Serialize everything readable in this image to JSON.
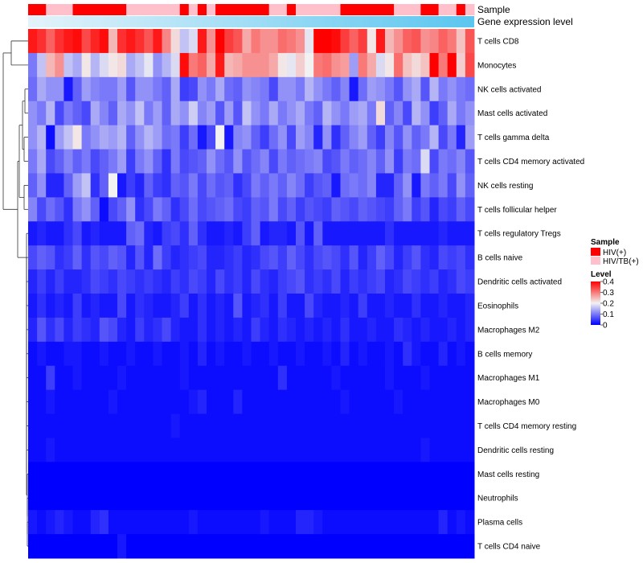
{
  "chart_data": {
    "type": "heatmap",
    "title": "",
    "annotation_labels": {
      "sample": "Sample",
      "gene_expression": "Gene expression level"
    },
    "rows": [
      "T cells CD8",
      "Monocytes",
      "NK cells activated",
      "Mast cells activated",
      "T cells gamma delta",
      "T cells CD4 memory activated",
      "NK cells resting",
      "T cells follicular helper",
      "T cells regulatory  Tregs",
      "B cells naive",
      "Dendritic cells activated",
      "Eosinophils",
      "Macrophages M2",
      "B cells memory",
      "Macrophages M1",
      "Macrophages M0",
      "T cells CD4 memory resting",
      "Dendritic cells resting",
      "Mast cells resting",
      "Neutrophils",
      "Plasma cells",
      "T cells CD4 naive"
    ],
    "num_samples": 50,
    "sample_groups": [
      "HIV(+)",
      "HIV(+)",
      "HIV/TB(+)",
      "HIV/TB(+)",
      "HIV/TB(+)",
      "HIV(+)",
      "HIV(+)",
      "HIV(+)",
      "HIV(+)",
      "HIV(+)",
      "HIV(+)",
      "HIV/TB(+)",
      "HIV/TB(+)",
      "HIV/TB(+)",
      "HIV/TB(+)",
      "HIV/TB(+)",
      "HIV/TB(+)",
      "HIV(+)",
      "HIV/TB(+)",
      "HIV(+)",
      "HIV/TB(+)",
      "HIV(+)",
      "HIV(+)",
      "HIV(+)",
      "HIV(+)",
      "HIV(+)",
      "HIV(+)",
      "HIV/TB(+)",
      "HIV/TB(+)",
      "HIV(+)",
      "HIV/TB(+)",
      "HIV/TB(+)",
      "HIV/TB(+)",
      "HIV/TB(+)",
      "HIV/TB(+)",
      "HIV(+)",
      "HIV(+)",
      "HIV(+)",
      "HIV(+)",
      "HIV(+)",
      "HIV(+)",
      "HIV/TB(+)",
      "HIV/TB(+)",
      "HIV/TB(+)",
      "HIV(+)",
      "HIV(+)",
      "HIV/TB(+)",
      "HIV/TB(+)",
      "HIV(+)",
      "HIV/TB(+)"
    ],
    "values": [
      [
        0.38,
        0.36,
        0.32,
        0.36,
        0.38,
        0.39,
        0.34,
        0.37,
        0.39,
        0.25,
        0.36,
        0.38,
        0.36,
        0.33,
        0.38,
        0.29,
        0.22,
        0.16,
        0.18,
        0.38,
        0.28,
        0.4,
        0.35,
        0.33,
        0.26,
        0.3,
        0.28,
        0.28,
        0.31,
        0.3,
        0.28,
        0.19,
        0.4,
        0.4,
        0.39,
        0.35,
        0.32,
        0.35,
        0.21,
        0.38,
        0.25,
        0.28,
        0.32,
        0.33,
        0.28,
        0.29,
        0.32,
        0.3,
        0.24,
        0.33
      ],
      [
        0.1,
        0.16,
        0.25,
        0.28,
        0.16,
        0.14,
        0.21,
        0.15,
        0.18,
        0.21,
        0.22,
        0.14,
        0.16,
        0.19,
        0.12,
        0.15,
        0.18,
        0.39,
        0.3,
        0.32,
        0.26,
        0.38,
        0.25,
        0.26,
        0.28,
        0.28,
        0.28,
        0.26,
        0.21,
        0.19,
        0.23,
        0.2,
        0.3,
        0.31,
        0.28,
        0.27,
        0.13,
        0.3,
        0.26,
        0.18,
        0.21,
        0.31,
        0.24,
        0.22,
        0.24,
        0.4,
        0.3,
        0.4,
        0.23,
        0.34
      ],
      [
        0.09,
        0.14,
        0.12,
        0.12,
        0.02,
        0.08,
        0.13,
        0.11,
        0.1,
        0.1,
        0.13,
        0.07,
        0.12,
        0.12,
        0.1,
        0.08,
        0.14,
        0.05,
        0.06,
        0.12,
        0.1,
        0.14,
        0.09,
        0.08,
        0.12,
        0.11,
        0.1,
        0.06,
        0.12,
        0.12,
        0.1,
        0.15,
        0.12,
        0.1,
        0.08,
        0.11,
        0.02,
        0.09,
        0.13,
        0.12,
        0.1,
        0.07,
        0.12,
        0.14,
        0.07,
        0.15,
        0.1,
        0.12,
        0.1,
        0.09
      ],
      [
        0.12,
        0.1,
        0.15,
        0.06,
        0.1,
        0.08,
        0.06,
        0.14,
        0.11,
        0.08,
        0.14,
        0.12,
        0.16,
        0.1,
        0.13,
        0.08,
        0.14,
        0.12,
        0.17,
        0.11,
        0.13,
        0.07,
        0.13,
        0.07,
        0.16,
        0.12,
        0.1,
        0.14,
        0.1,
        0.12,
        0.14,
        0.1,
        0.08,
        0.15,
        0.12,
        0.1,
        0.13,
        0.14,
        0.1,
        0.22,
        0.08,
        0.11,
        0.06,
        0.15,
        0.12,
        0.05,
        0.08,
        0.14,
        0.1,
        0.12
      ],
      [
        0.12,
        0.15,
        0.01,
        0.13,
        0.16,
        0.21,
        0.1,
        0.12,
        0.14,
        0.13,
        0.15,
        0.08,
        0.12,
        0.15,
        0.13,
        0.09,
        0.1,
        0.05,
        0.09,
        0.02,
        0.06,
        0.2,
        0.02,
        0.11,
        0.12,
        0.08,
        0.05,
        0.09,
        0.12,
        0.06,
        0.13,
        0.11,
        0.03,
        0.12,
        0.04,
        0.08,
        0.11,
        0.13,
        0.08,
        0.05,
        0.11,
        0.07,
        0.12,
        0.08,
        0.1,
        0.15,
        0.06,
        0.1,
        0.03,
        0.13
      ],
      [
        0.1,
        0.14,
        0.06,
        0.08,
        0.11,
        0.08,
        0.1,
        0.06,
        0.08,
        0.1,
        0.13,
        0.05,
        0.1,
        0.12,
        0.08,
        0.04,
        0.1,
        0.06,
        0.07,
        0.08,
        0.12,
        0.09,
        0.07,
        0.12,
        0.07,
        0.09,
        0.11,
        0.06,
        0.1,
        0.08,
        0.09,
        0.1,
        0.11,
        0.06,
        0.07,
        0.1,
        0.08,
        0.09,
        0.11,
        0.08,
        0.12,
        0.05,
        0.1,
        0.09,
        0.18,
        0.06,
        0.1,
        0.09,
        0.11,
        0.07
      ],
      [
        0.08,
        0.12,
        0.03,
        0.03,
        0.08,
        0.13,
        0.16,
        0.04,
        0.08,
        0.2,
        0.02,
        0.05,
        0.03,
        0.08,
        0.05,
        0.04,
        0.08,
        0.07,
        0.1,
        0.06,
        0.09,
        0.07,
        0.08,
        0.04,
        0.06,
        0.1,
        0.08,
        0.1,
        0.08,
        0.11,
        0.09,
        0.05,
        0.07,
        0.08,
        0.02,
        0.09,
        0.1,
        0.09,
        0.11,
        0.03,
        0.03,
        0.08,
        0.12,
        0.02,
        0.1,
        0.08,
        0.1,
        0.06,
        0.12,
        0.08
      ],
      [
        0.11,
        0.06,
        0.09,
        0.07,
        0.04,
        0.1,
        0.12,
        0.08,
        0.01,
        0.06,
        0.08,
        0.12,
        0.04,
        0.06,
        0.1,
        0.08,
        0.04,
        0.06,
        0.09,
        0.06,
        0.07,
        0.08,
        0.09,
        0.06,
        0.05,
        0.08,
        0.07,
        0.1,
        0.06,
        0.08,
        0.05,
        0.07,
        0.06,
        0.05,
        0.08,
        0.07,
        0.06,
        0.08,
        0.07,
        0.06,
        0.05,
        0.08,
        0.1,
        0.05,
        0.07,
        0.03,
        0.06,
        0.05,
        0.08,
        0.06
      ],
      [
        0.02,
        0.03,
        0.02,
        0.02,
        0.04,
        0.06,
        0.02,
        0.03,
        0.02,
        0.02,
        0.02,
        0.08,
        0.09,
        0.03,
        0.02,
        0.05,
        0.06,
        0.04,
        0.08,
        0.04,
        0.02,
        0.02,
        0.03,
        0.02,
        0.05,
        0.08,
        0.02,
        0.03,
        0.03,
        0.02,
        0.07,
        0.02,
        0.08,
        0.02,
        0.02,
        0.02,
        0.02,
        0.02,
        0.02,
        0.02,
        0.04,
        0.02,
        0.02,
        0.02,
        0.02,
        0.02,
        0.03,
        0.02,
        0.02,
        0.02
      ],
      [
        0.06,
        0.08,
        0.07,
        0.04,
        0.05,
        0.08,
        0.04,
        0.07,
        0.06,
        0.08,
        0.07,
        0.03,
        0.07,
        0.03,
        0.09,
        0.05,
        0.03,
        0.04,
        0.05,
        0.06,
        0.03,
        0.03,
        0.04,
        0.05,
        0.03,
        0.04,
        0.06,
        0.07,
        0.05,
        0.08,
        0.06,
        0.04,
        0.06,
        0.07,
        0.06,
        0.04,
        0.07,
        0.03,
        0.05,
        0.08,
        0.06,
        0.03,
        0.05,
        0.07,
        0.04,
        0.03,
        0.06,
        0.05,
        0.06,
        0.04
      ],
      [
        0.03,
        0.05,
        0.03,
        0.05,
        0.03,
        0.03,
        0.04,
        0.06,
        0.05,
        0.04,
        0.06,
        0.05,
        0.04,
        0.05,
        0.04,
        0.03,
        0.05,
        0.04,
        0.06,
        0.05,
        0.03,
        0.06,
        0.04,
        0.05,
        0.03,
        0.06,
        0.04,
        0.03,
        0.05,
        0.06,
        0.07,
        0.04,
        0.05,
        0.04,
        0.06,
        0.03,
        0.05,
        0.04,
        0.05,
        0.06,
        0.03,
        0.04,
        0.06,
        0.05,
        0.04,
        0.05,
        0.03,
        0.04,
        0.06,
        0.05
      ],
      [
        0.02,
        0.04,
        0.02,
        0.03,
        0.02,
        0.05,
        0.02,
        0.03,
        0.02,
        0.02,
        0.06,
        0.02,
        0.04,
        0.03,
        0.02,
        0.02,
        0.03,
        0.05,
        0.02,
        0.04,
        0.02,
        0.03,
        0.02,
        0.07,
        0.02,
        0.03,
        0.04,
        0.02,
        0.05,
        0.02,
        0.02,
        0.06,
        0.03,
        0.02,
        0.02,
        0.03,
        0.02,
        0.05,
        0.02,
        0.02,
        0.03,
        0.02,
        0.02,
        0.04,
        0.02,
        0.02,
        0.03,
        0.02,
        0.02,
        0.03
      ],
      [
        0.03,
        0.07,
        0.04,
        0.06,
        0.03,
        0.05,
        0.04,
        0.03,
        0.07,
        0.06,
        0.03,
        0.02,
        0.05,
        0.03,
        0.04,
        0.06,
        0.03,
        0.02,
        0.02,
        0.04,
        0.02,
        0.03,
        0.02,
        0.03,
        0.02,
        0.05,
        0.03,
        0.02,
        0.04,
        0.03,
        0.02,
        0.03,
        0.02,
        0.03,
        0.02,
        0.04,
        0.02,
        0.02,
        0.03,
        0.02,
        0.02,
        0.04,
        0.03,
        0.02,
        0.03,
        0.02,
        0.02,
        0.03,
        0.02,
        0.03
      ],
      [
        0.01,
        0.02,
        0.01,
        0.01,
        0.02,
        0.02,
        0.01,
        0.01,
        0.02,
        0.01,
        0.01,
        0.02,
        0.01,
        0.01,
        0.02,
        0.01,
        0.01,
        0.02,
        0.01,
        0.03,
        0.01,
        0.02,
        0.01,
        0.01,
        0.02,
        0.01,
        0.01,
        0.02,
        0.01,
        0.01,
        0.02,
        0.01,
        0.01,
        0.02,
        0.01,
        0.03,
        0.01,
        0.02,
        0.01,
        0.01,
        0.02,
        0.01,
        0.04,
        0.02,
        0.01,
        0.01,
        0.03,
        0.01,
        0.02,
        0.01
      ],
      [
        0.01,
        0.01,
        0.05,
        0.01,
        0.01,
        0.02,
        0.01,
        0.01,
        0.01,
        0.01,
        0.02,
        0.01,
        0.01,
        0.01,
        0.01,
        0.01,
        0.01,
        0.02,
        0.01,
        0.01,
        0.01,
        0.01,
        0.01,
        0.01,
        0.01,
        0.01,
        0.01,
        0.01,
        0.04,
        0.01,
        0.01,
        0.01,
        0.01,
        0.01,
        0.02,
        0.01,
        0.01,
        0.01,
        0.01,
        0.01,
        0.02,
        0.01,
        0.01,
        0.01,
        0.02,
        0.01,
        0.01,
        0.01,
        0.01,
        0.01
      ],
      [
        0.01,
        0.01,
        0.02,
        0.01,
        0.01,
        0.01,
        0.01,
        0.01,
        0.01,
        0.02,
        0.01,
        0.01,
        0.01,
        0.01,
        0.01,
        0.01,
        0.01,
        0.01,
        0.02,
        0.03,
        0.01,
        0.01,
        0.01,
        0.03,
        0.01,
        0.01,
        0.01,
        0.01,
        0.01,
        0.01,
        0.01,
        0.01,
        0.01,
        0.01,
        0.01,
        0.02,
        0.01,
        0.01,
        0.01,
        0.01,
        0.01,
        0.02,
        0.01,
        0.01,
        0.01,
        0.01,
        0.01,
        0.01,
        0.01,
        0.01
      ],
      [
        0.01,
        0.01,
        0.01,
        0.01,
        0.01,
        0.01,
        0.01,
        0.01,
        0.01,
        0.01,
        0.01,
        0.01,
        0.01,
        0.01,
        0.01,
        0.01,
        0.02,
        0.01,
        0.01,
        0.01,
        0.01,
        0.01,
        0.01,
        0.01,
        0.01,
        0.01,
        0.01,
        0.01,
        0.01,
        0.01,
        0.01,
        0.01,
        0.01,
        0.01,
        0.01,
        0.01,
        0.01,
        0.01,
        0.01,
        0.01,
        0.01,
        0.01,
        0.01,
        0.01,
        0.01,
        0.01,
        0.01,
        0.01,
        0.01,
        0.01
      ],
      [
        0.01,
        0.01,
        0.02,
        0.01,
        0.01,
        0.01,
        0.01,
        0.01,
        0.01,
        0.01,
        0.01,
        0.01,
        0.01,
        0.01,
        0.01,
        0.01,
        0.01,
        0.01,
        0.01,
        0.01,
        0.01,
        0.01,
        0.01,
        0.01,
        0.01,
        0.01,
        0.01,
        0.01,
        0.01,
        0.01,
        0.01,
        0.01,
        0.01,
        0.01,
        0.01,
        0.01,
        0.01,
        0.01,
        0.01,
        0.01,
        0.01,
        0.01,
        0.01,
        0.01,
        0.02,
        0.01,
        0.01,
        0.01,
        0.01,
        0.01
      ],
      [
        0.0,
        0.0,
        0.0,
        0.0,
        0.0,
        0.0,
        0.0,
        0.0,
        0.0,
        0.0,
        0.0,
        0.0,
        0.0,
        0.0,
        0.0,
        0.0,
        0.0,
        0.0,
        0.0,
        0.0,
        0.0,
        0.0,
        0.0,
        0.0,
        0.0,
        0.0,
        0.0,
        0.0,
        0.0,
        0.0,
        0.0,
        0.0,
        0.0,
        0.0,
        0.0,
        0.0,
        0.0,
        0.0,
        0.0,
        0.0,
        0.0,
        0.0,
        0.0,
        0.0,
        0.0,
        0.0,
        0.0,
        0.0,
        0.0,
        0.0
      ],
      [
        0.0,
        0.0,
        0.0,
        0.0,
        0.0,
        0.0,
        0.0,
        0.0,
        0.0,
        0.0,
        0.0,
        0.0,
        0.0,
        0.0,
        0.0,
        0.0,
        0.0,
        0.0,
        0.0,
        0.0,
        0.0,
        0.0,
        0.0,
        0.0,
        0.0,
        0.0,
        0.0,
        0.0,
        0.0,
        0.0,
        0.0,
        0.0,
        0.0,
        0.0,
        0.0,
        0.0,
        0.0,
        0.0,
        0.0,
        0.0,
        0.0,
        0.0,
        0.0,
        0.0,
        0.0,
        0.0,
        0.0,
        0.0,
        0.0,
        0.0
      ],
      [
        0.02,
        0.01,
        0.02,
        0.03,
        0.02,
        0.01,
        0.01,
        0.03,
        0.04,
        0.01,
        0.01,
        0.01,
        0.01,
        0.01,
        0.01,
        0.01,
        0.01,
        0.01,
        0.02,
        0.01,
        0.01,
        0.01,
        0.01,
        0.01,
        0.01,
        0.01,
        0.02,
        0.01,
        0.01,
        0.01,
        0.03,
        0.03,
        0.02,
        0.01,
        0.01,
        0.01,
        0.01,
        0.01,
        0.01,
        0.01,
        0.01,
        0.01,
        0.01,
        0.01,
        0.01,
        0.01,
        0.03,
        0.01,
        0.02,
        0.01
      ],
      [
        0.0,
        0.0,
        0.0,
        0.0,
        0.0,
        0.0,
        0.0,
        0.0,
        0.0,
        0.0,
        0.02,
        0.0,
        0.0,
        0.0,
        0.0,
        0.0,
        0.0,
        0.0,
        0.0,
        0.0,
        0.0,
        0.0,
        0.0,
        0.0,
        0.0,
        0.0,
        0.0,
        0.0,
        0.0,
        0.0,
        0.0,
        0.0,
        0.0,
        0.0,
        0.0,
        0.0,
        0.0,
        0.0,
        0.0,
        0.0,
        0.0,
        0.0,
        0.0,
        0.0,
        0.0,
        0.0,
        0.0,
        0.0,
        0.0,
        0.0
      ]
    ],
    "gene_expression_gradient": [
      "#e4f3fb",
      "#5bc6ef"
    ],
    "legend": {
      "sample_title": "Sample",
      "groups": [
        {
          "label": "HIV(+)",
          "color": "#ff0000"
        },
        {
          "label": "HIV/TB(+)",
          "color": "#ffc0cb"
        }
      ],
      "level_title": "Level",
      "level_ticks": [
        {
          "value": 0.4,
          "label": "0.4"
        },
        {
          "value": 0.3,
          "label": "0.3"
        },
        {
          "value": 0.2,
          "label": "0.2"
        },
        {
          "value": 0.1,
          "label": "0.1"
        },
        {
          "value": 0.0,
          "label": "0"
        }
      ],
      "level_range": [
        0,
        0.4
      ],
      "level_colors": {
        "low": "#0000ff",
        "mid": "#f2f2f2",
        "high": "#ff0000"
      }
    }
  }
}
